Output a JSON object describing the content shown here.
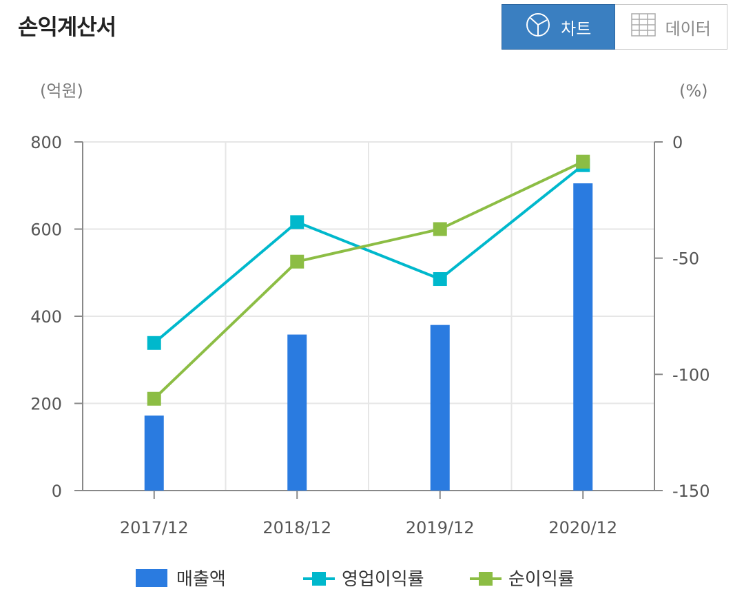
{
  "page_title": "손익계산서",
  "view_toggle": {
    "chart_label": "차트",
    "data_label": "데이터",
    "active": "chart"
  },
  "left_unit": "(억원)",
  "right_unit": "(%)",
  "colors": {
    "bar": "#2a7be0",
    "operating": "#00b8cc",
    "net": "#8cbd44",
    "axis": "#888888",
    "grid": "#e6e6e6"
  },
  "chart_data": {
    "type": "bar+line",
    "categories": [
      "2017/12",
      "2018/12",
      "2019/12",
      "2020/12"
    ],
    "y_left": {
      "range": [
        0,
        800
      ],
      "ticks": [
        0,
        200,
        400,
        600,
        800
      ]
    },
    "y_right": {
      "range": [
        -150,
        0
      ],
      "ticks": [
        -150,
        -100,
        -50,
        0
      ]
    },
    "series": [
      {
        "name": "매출액",
        "type": "bar",
        "axis": "left",
        "values": [
          172,
          358,
          380,
          705
        ]
      },
      {
        "name": "영업이익률",
        "type": "line",
        "axis": "right",
        "values": [
          -86.5,
          -34.5,
          -59,
          -10
        ]
      },
      {
        "name": "순이익률",
        "type": "line",
        "axis": "right",
        "values": [
          -110.5,
          -51.5,
          -37.5,
          -8.5
        ]
      }
    ],
    "grid": true,
    "legend_position": "bottom"
  }
}
